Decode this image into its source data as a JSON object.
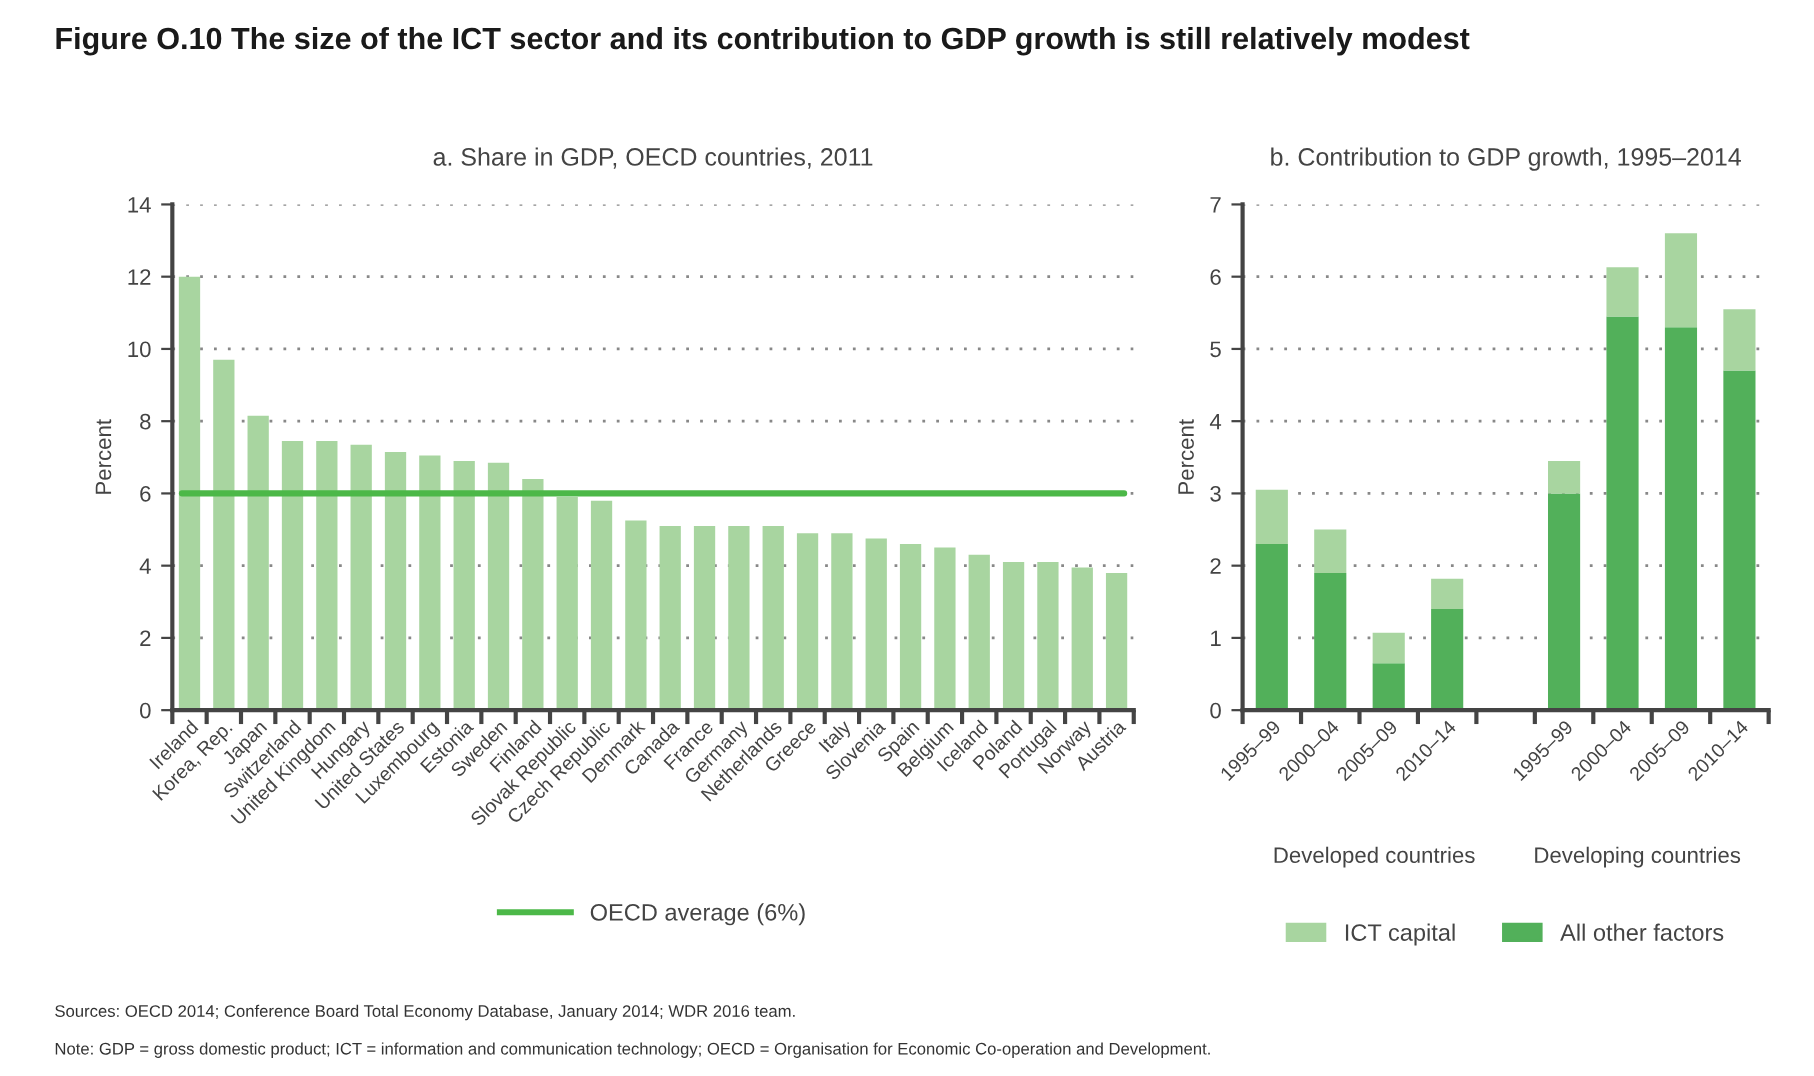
{
  "chart_data": [
    {
      "type": "bar",
      "title": "Figure O.10 The size of the ICT sector and its contribution to GDP growth is still relatively modest",
      "subtitle": "a. Share in GDP, OECD countries, 2011",
      "ylabel": "Percent",
      "categories": [
        "Ireland",
        "Korea, Rep.",
        "Japan",
        "Switzerland",
        "United Kingdom",
        "Hungary",
        "United States",
        "Luxembourg",
        "Estonia",
        "Sweden",
        "Finland",
        "Slovak Republic",
        "Czech Republic",
        "Denmark",
        "Canada",
        "France",
        "Germany",
        "Netherlands",
        "Greece",
        "Italy",
        "Slovenia",
        "Spain",
        "Belgium",
        "Iceland",
        "Poland",
        "Portugal",
        "Norway",
        "Austria"
      ],
      "values": [
        12,
        9.7,
        8.15,
        7.45,
        7.45,
        7.35,
        7.15,
        7.05,
        6.9,
        6.85,
        6.4,
        5.9,
        5.8,
        5.25,
        5.1,
        5.1,
        5.1,
        5.1,
        4.9,
        4.9,
        4.75,
        4.6,
        4.5,
        4.3,
        4.1,
        4.1,
        3.95,
        3.8
      ],
      "color": "#a8d5a0",
      "ylim": [
        0,
        14
      ],
      "yticks": [
        0,
        2,
        4,
        6,
        8,
        10,
        12,
        14
      ],
      "grid": "y",
      "legend": "bottom",
      "ref_lines": [
        {
          "axis": "y",
          "value": 6,
          "label": "OECD average (6%)",
          "color": "#4cb848",
          "line_style": "solid"
        }
      ],
      "annotations": [
        "Sources: OECD 2014; Conference Board Total Economy Database, January 2014; WDR 2016 team.",
        "Note: GDP = gross domestic product; ICT = information and communication technology; OECD = Organisation for Economic Co-operation and Development."
      ]
    },
    {
      "type": "bar",
      "title": "b. Contribution to GDP growth, 1995–2014",
      "ylabel": "Percent",
      "stacked": true,
      "categories": [
        "1995–99",
        "2000–04",
        "2005–09",
        "2010–14",
        null,
        "1995–99",
        "2000–04",
        "2005–09",
        "2010–14"
      ],
      "series": [
        {
          "name": "All other factors",
          "color": "#52b05a",
          "values": [
            2.3,
            1.9,
            0.65,
            1.4,
            null,
            3.0,
            5.45,
            5.3,
            4.7
          ]
        },
        {
          "name": "ICT capital",
          "color": "#a8d5a0",
          "values": [
            0.75,
            0.6,
            0.42,
            0.42,
            null,
            0.45,
            0.68,
            1.3,
            0.85
          ]
        }
      ],
      "ylim": [
        0,
        7
      ],
      "yticks": [
        0,
        1,
        2,
        3,
        4,
        5,
        6,
        7
      ],
      "grid": "y",
      "legend": "bottom",
      "annotations": [
        "Developed countries",
        "Developing countries"
      ]
    }
  ]
}
